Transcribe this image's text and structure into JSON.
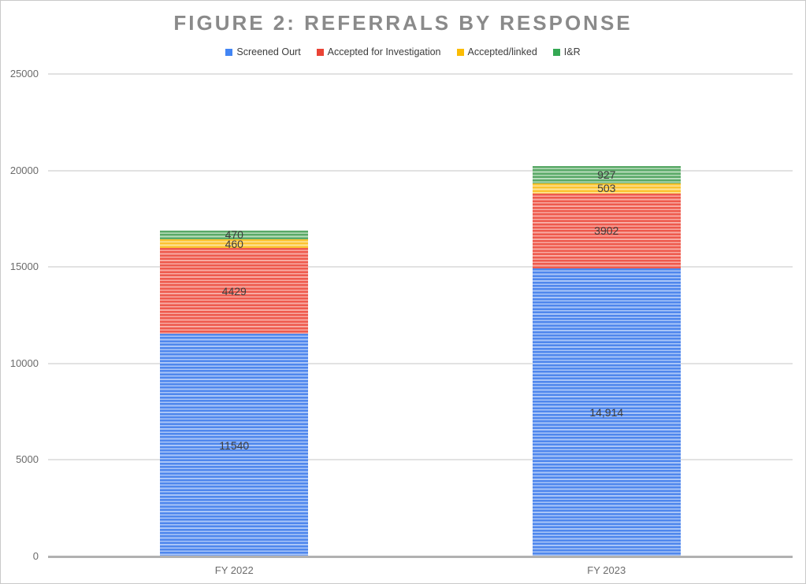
{
  "title": "FIGURE 2: REFERRALS BY RESPONSE",
  "chart_data": {
    "type": "bar",
    "stacked": true,
    "title": "FIGURE 2: REFERRALS BY RESPONSE",
    "categories": [
      "FY 2022",
      "FY 2023"
    ],
    "series": [
      {
        "name": "Screened Ourt",
        "values": [
          11540,
          14914
        ],
        "labels": [
          "11540",
          "14,914"
        ],
        "color": "#4f87ed",
        "stripe_color": "#aac6f8",
        "legend_color": "#4285f4"
      },
      {
        "name": "Accepted for Investigation",
        "values": [
          4429,
          3902
        ],
        "labels": [
          "4429",
          "3902"
        ],
        "color": "#ee5a4d",
        "stripe_color": "#f8aba3",
        "legend_color": "#ea4335"
      },
      {
        "name": "Accepted/linked",
        "values": [
          460,
          503
        ],
        "labels": [
          "460",
          "503"
        ],
        "color": "#fcc330",
        "stripe_color": "#fde49c",
        "legend_color": "#fbbc04"
      },
      {
        "name": "I&R",
        "values": [
          470,
          927
        ],
        "labels": [
          "470",
          "927"
        ],
        "color": "#5aa967",
        "stripe_color": "#b9ddbc",
        "legend_color": "#34a853"
      }
    ],
    "y_axis": {
      "min": 0,
      "max": 25000,
      "ticks": [
        0,
        5000,
        10000,
        15000,
        20000,
        25000
      ],
      "tick_labels": [
        "0",
        "5000",
        "10000",
        "15000",
        "20000",
        "25000"
      ]
    },
    "xlabel": "",
    "ylabel": "",
    "legend_position": "top",
    "grid": true
  }
}
